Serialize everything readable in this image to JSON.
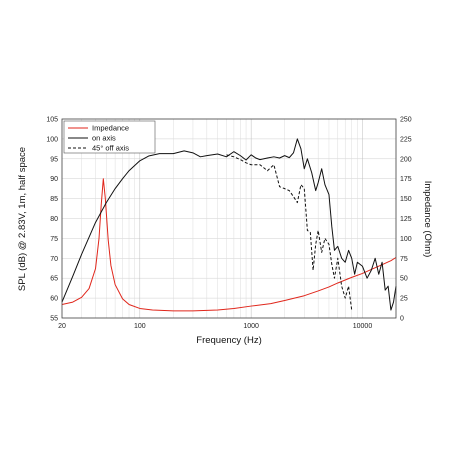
{
  "chart_data": {
    "type": "line",
    "title": "",
    "xlabel": "Frequency (Hz)",
    "ylabel": "SPL (dB) @ 2.83V, 1m, half space",
    "y2label": "Impedance (Ohm)",
    "x_scale": "log",
    "xlim": [
      20,
      20000
    ],
    "ylim": [
      55,
      105
    ],
    "y2lim": [
      0,
      250
    ],
    "x_ticks": [
      20,
      100,
      1000,
      10000
    ],
    "x_tick_labels": [
      "20",
      "100",
      "1000",
      "10000"
    ],
    "y_ticks": [
      55,
      60,
      65,
      70,
      75,
      80,
      85,
      90,
      95,
      100,
      105
    ],
    "y_tick_labels": [
      "55",
      "60",
      "65",
      "70",
      "75",
      "80",
      "85",
      "90",
      "95",
      "100",
      "105"
    ],
    "y2_ticks": [
      0,
      25,
      50,
      75,
      100,
      125,
      150,
      175,
      200,
      225,
      250
    ],
    "y2_tick_labels": [
      "0",
      "25",
      "50",
      "75",
      "100",
      "125",
      "150",
      "175",
      "200",
      "225",
      "250"
    ],
    "grid": true,
    "legend_position": "top-left",
    "series": [
      {
        "name": "Impedance",
        "axis": "right",
        "color": "#e0261b",
        "style": "solid",
        "x": [
          20,
          25,
          30,
          35,
          40,
          43,
          45,
          47,
          49,
          52,
          55,
          60,
          70,
          80,
          100,
          130,
          200,
          300,
          500,
          700,
          1000,
          1500,
          2000,
          3000,
          4000,
          5000,
          6000,
          8000,
          10000,
          12000,
          15000,
          18000,
          20000
        ],
        "values": [
          17,
          20,
          26,
          37,
          62,
          100,
          142,
          175,
          150,
          98,
          66,
          42,
          24,
          17,
          12,
          10,
          9,
          9,
          10,
          12,
          15,
          18,
          22,
          28,
          34,
          39,
          44,
          51,
          56,
          61,
          67,
          72,
          76
        ]
      },
      {
        "name": "on axis",
        "axis": "left",
        "color": "#111111",
        "style": "solid",
        "x": [
          20,
          25,
          30,
          40,
          50,
          60,
          70,
          80,
          100,
          120,
          150,
          200,
          250,
          300,
          350,
          400,
          500,
          600,
          700,
          800,
          900,
          1000,
          1100,
          1200,
          1400,
          1600,
          1800,
          2000,
          2200,
          2400,
          2600,
          2800,
          3000,
          3200,
          3500,
          3800,
          4000,
          4300,
          4600,
          5000,
          5300,
          5600,
          6000,
          6500,
          7000,
          7500,
          8000,
          8500,
          9000,
          10000,
          11000,
          12000,
          13000,
          14000,
          15000,
          16000,
          17000,
          18000,
          19000,
          20000
        ],
        "values": [
          59,
          65.5,
          71,
          79,
          84,
          87.5,
          90,
          92,
          94.5,
          95.7,
          96.3,
          96.3,
          97,
          96.5,
          95.5,
          95.8,
          96.2,
          95.5,
          96.8,
          95.8,
          94.7,
          96,
          95.2,
          94.8,
          95.2,
          95.5,
          95.2,
          95.8,
          95.3,
          96.5,
          100,
          97.5,
          92.5,
          95,
          91.5,
          87,
          89,
          92.5,
          88.5,
          86,
          78,
          72,
          73,
          70,
          69,
          72,
          70,
          66,
          69,
          68,
          65,
          67,
          70,
          66,
          69,
          62,
          63,
          57,
          59,
          63
        ]
      },
      {
        "name": "45° off axis",
        "axis": "left",
        "color": "#111111",
        "style": "dashed",
        "x": [
          600,
          700,
          800,
          900,
          1000,
          1200,
          1400,
          1600,
          1800,
          2000,
          2200,
          2400,
          2600,
          2800,
          3000,
          3200,
          3400,
          3600,
          3800,
          4000,
          4300,
          4600,
          5000,
          5300,
          5600,
          6000,
          6500,
          7000,
          7500,
          8000
        ],
        "values": [
          96,
          95.5,
          94.8,
          94,
          93.5,
          93.5,
          92,
          93.5,
          88,
          87.5,
          87,
          85.5,
          84,
          88.5,
          87.5,
          77,
          76.5,
          67,
          73.5,
          77,
          71.5,
          75,
          73.5,
          68.5,
          65,
          70,
          63,
          60,
          63,
          57
        ]
      }
    ]
  }
}
